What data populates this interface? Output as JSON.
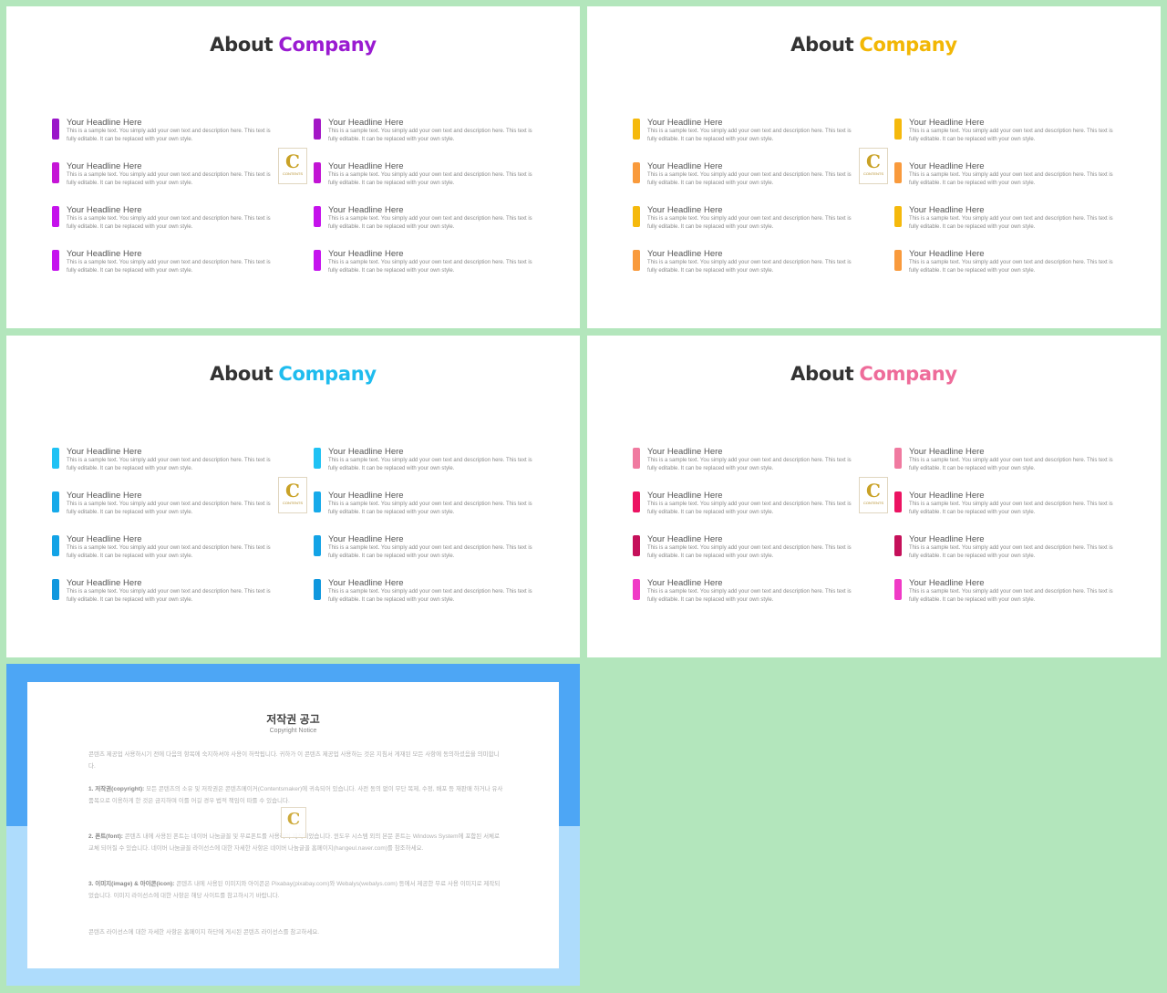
{
  "slides": [
    {
      "title_a": "About",
      "title_b": "Company",
      "accent": "#9a1bd1",
      "bars": [
        "#9a16c9",
        "#c515d6",
        "#c512ec",
        "#c513ee",
        "#a317c6",
        "#c214d4",
        "#c512ec",
        "#c513ee"
      ]
    },
    {
      "title_a": "About",
      "title_b": "Company",
      "accent": "#f2b705",
      "bars": [
        "#f5b90c",
        "#f99a3c",
        "#f5b90c",
        "#f99a3c",
        "#f5b90c",
        "#f99a3c",
        "#f5b90c",
        "#f99a3c"
      ]
    },
    {
      "title_a": "About",
      "title_b": "Company",
      "accent": "#1fbcee",
      "bars": [
        "#1fc2f4",
        "#16aaea",
        "#13a3e6",
        "#0f97de",
        "#1fc2f4",
        "#16aaea",
        "#13a3e6",
        "#0f97de"
      ]
    },
    {
      "title_a": "About",
      "title_b": "Company",
      "accent": "#ee6c9a",
      "bars": [
        "#f07aa0",
        "#ec1362",
        "#c5105a",
        "#f03ac6",
        "#f07aa0",
        "#ec1362",
        "#c5105a",
        "#f03ac6"
      ]
    }
  ],
  "item": {
    "headline": "Your Headline Here",
    "description": "This is a sample text. You simply add your own text and description here. This text is fully editable. It can be replaced with your own style."
  },
  "logo": {
    "letter": "C",
    "text": "CONTENTS"
  },
  "notice": {
    "title": "저작권 공고",
    "subtitle": "Copyright Notice",
    "p0": "콘텐츠 제공업 사용하시기 전에 다음의 항목에 숙지하셔야 사용이 허락됩니다. 귀하가 이 콘텐츠 제공업 사용하는 것은 지침서 게재된 모든 사항에 동의하셨음을 의미합니다.",
    "p1_label": "1. 저작권(copyright):",
    "p1": "모든 콘텐츠의 소유 및 저작권은 콘텐츠메이커(Contentsmaker)에 귀속되어 있습니다. 사전 동의 없이 무단 복제, 수정, 배포 등 재판매 하거나 유사 품목으로 이용하게 한 것은 금지하며 이를 어길 경우 법적 책임이 따를 수 있습니다.",
    "p2_label": "2. 폰트(font):",
    "p2": "콘텐츠 내에 사용된 폰트는 네이버 나눔글꼴 및 무료폰트를 사용하여 제작되었습니다. 윈도우 시스템 외의 본문 폰트는 Windows System에 포함된 서체로 교체 되어질 수 있습니다. 네이버 나눔글꼴 라이선스에 대한 자세한 사항은 네이버 나눔글꼴 홈페이지(hangeul.naver.com)를 참조하세요.",
    "p3_label": "3. 이미지(image) & 아이콘(icon):",
    "p3": "콘텐츠 내에 사용된 이미지와 아이콘은 Pixabay(pixabay.com)와 Webalys(webalys.com) 등에서 제공한 무료 사용 이미지로 제작되었습니다. 이미지 라이선스에 대한 사항은 해당 사이트를 참고하시기 바랍니다.",
    "p4": "콘텐츠 라이선스에 대한 자세한 사항은 홈페이지 하단에 게시된 콘텐츠 라이선스를 참고하세요."
  }
}
